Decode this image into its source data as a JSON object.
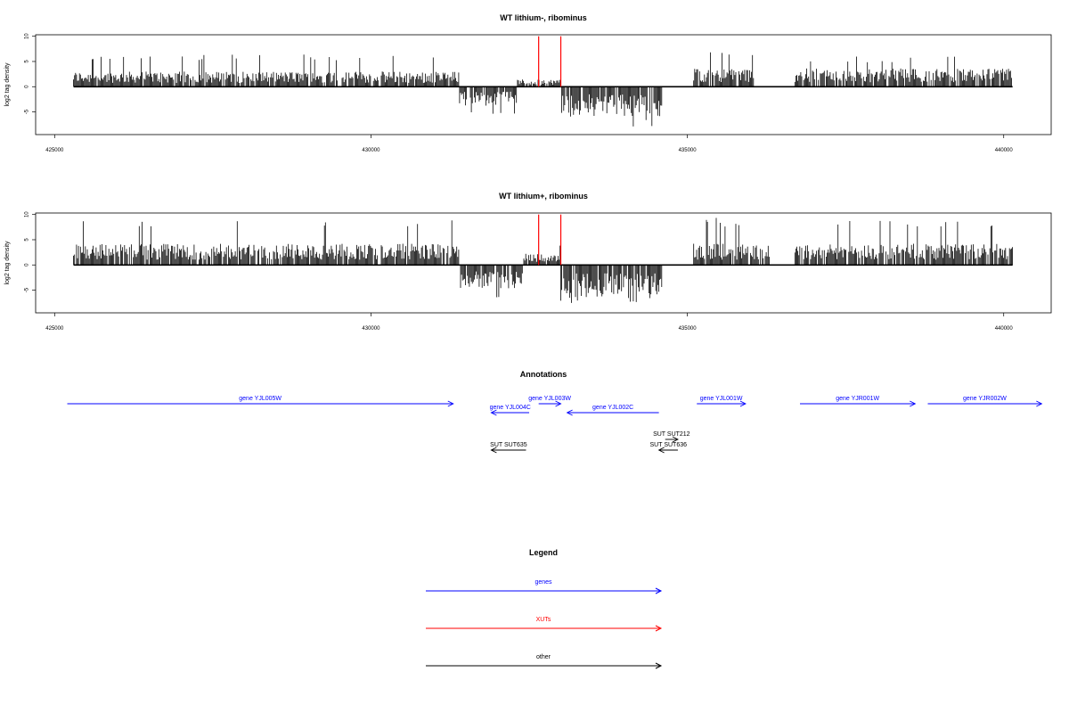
{
  "colors": {
    "genes": "#0000ff",
    "xuts": "#ff0000",
    "other": "#000000",
    "signal": "#000000",
    "marker": "#ff0000"
  },
  "chart_data": [
    {
      "type": "bar",
      "title": "WT lithium-, ribominus",
      "ylabel": "log2 tag density",
      "xlim": [
        424700,
        440750
      ],
      "ylim": [
        -9.5,
        10.3
      ],
      "xticks": [
        425000,
        430000,
        435000,
        440000
      ],
      "yticks": [
        10,
        5,
        0,
        -5
      ],
      "xtick_labels": [
        "425000",
        "430000",
        "435000",
        "440000"
      ],
      "ytick_labels": [
        "10",
        "5",
        "0",
        "-5"
      ],
      "baseline": [
        425300,
        440140
      ],
      "red_markers": [
        432650,
        433000
      ],
      "signal_segments": [
        {
          "from": 425300,
          "to": 431400,
          "direction": "up",
          "typical": 2.5,
          "max": 6.4
        },
        {
          "from": 431400,
          "to": 432300,
          "direction": "down",
          "typical": -3.2,
          "max": -5.5
        },
        {
          "from": 432300,
          "to": 433000,
          "direction": "up",
          "typical": 1.2,
          "max": 3.5
        },
        {
          "from": 433000,
          "to": 434600,
          "direction": "down",
          "typical": -5.0,
          "max": -8.0
        },
        {
          "from": 435100,
          "to": 436050,
          "direction": "up",
          "typical": 3.0,
          "max": 7.8
        },
        {
          "from": 436700,
          "to": 440140,
          "direction": "up",
          "typical": 3.0,
          "max": 6.0
        }
      ]
    },
    {
      "type": "bar",
      "title": "WT lithium+, ribominus",
      "ylabel": "log2 tag density",
      "xlim": [
        424700,
        440750
      ],
      "ylim": [
        -9.5,
        10.3
      ],
      "xticks": [
        425000,
        430000,
        435000,
        440000
      ],
      "yticks": [
        10,
        5,
        0,
        -5
      ],
      "xtick_labels": [
        "425000",
        "430000",
        "435000",
        "440000"
      ],
      "ytick_labels": [
        "10",
        "5",
        "0",
        "-5"
      ],
      "baseline": [
        425300,
        440140
      ],
      "red_markers": [
        432650,
        433000
      ],
      "signal_segments": [
        {
          "from": 425300,
          "to": 431400,
          "direction": "up",
          "typical": 3.5,
          "max": 9.0
        },
        {
          "from": 431400,
          "to": 432400,
          "direction": "down",
          "typical": -4.0,
          "max": -7.0
        },
        {
          "from": 432400,
          "to": 433000,
          "direction": "up",
          "typical": 2.0,
          "max": 4.5
        },
        {
          "from": 433000,
          "to": 434600,
          "direction": "down",
          "typical": -5.5,
          "max": -8.5
        },
        {
          "from": 435100,
          "to": 436300,
          "direction": "up",
          "typical": 3.5,
          "max": 9.5
        },
        {
          "from": 436700,
          "to": 440140,
          "direction": "up",
          "typical": 3.5,
          "max": 9.0
        }
      ]
    }
  ],
  "annotations": {
    "title": "Annotations",
    "features": [
      {
        "label": "gene YJL005W",
        "category": "genes",
        "strand": "+",
        "start": 425200,
        "end": 431300,
        "row": 0
      },
      {
        "label": "gene YJL004C",
        "category": "genes",
        "strand": "-",
        "start": 431900,
        "end": 432500,
        "row": 1
      },
      {
        "label": "gene YJL003W",
        "category": "genes",
        "strand": "+",
        "start": 432650,
        "end": 433000,
        "row": 0
      },
      {
        "label": "gene YJL002C",
        "category": "genes",
        "strand": "-",
        "start": 433100,
        "end": 434550,
        "row": 1
      },
      {
        "label": "gene YJL001W",
        "category": "genes",
        "strand": "+",
        "start": 435150,
        "end": 435920,
        "row": 0
      },
      {
        "label": "gene YJR001W",
        "category": "genes",
        "strand": "+",
        "start": 436780,
        "end": 438600,
        "row": 0
      },
      {
        "label": "gene YJR002W",
        "category": "genes",
        "strand": "+",
        "start": 438800,
        "end": 440600,
        "row": 0
      },
      {
        "label": "SUT SUT212",
        "category": "other",
        "strand": "+",
        "start": 434650,
        "end": 434850,
        "row": 3
      },
      {
        "label": "SUT SUT635",
        "category": "other",
        "strand": "-",
        "start": 431900,
        "end": 432450,
        "row": 4
      },
      {
        "label": "SUT SUT636",
        "category": "other",
        "strand": "-",
        "start": 434550,
        "end": 434850,
        "row": 4
      }
    ]
  },
  "legend": {
    "title": "Legend",
    "items": [
      {
        "label": "genes",
        "category": "genes"
      },
      {
        "label": "XUTs",
        "category": "xuts"
      },
      {
        "label": "other",
        "category": "other"
      }
    ]
  }
}
